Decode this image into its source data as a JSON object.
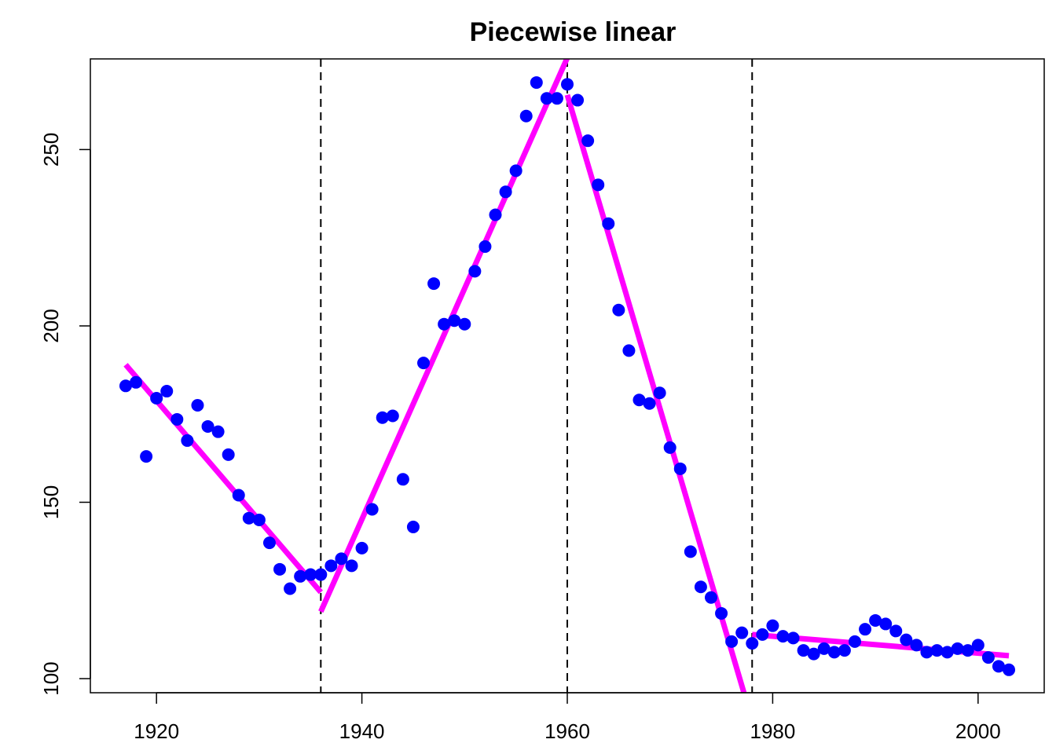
{
  "chart_data": {
    "type": "scatter",
    "title": "Piecewise linear",
    "xlabel": "",
    "ylabel": "",
    "xlim": [
      1913.56,
      2006.44
    ],
    "ylim": [
      96.0,
      275.7
    ],
    "x_ticks": [
      1920,
      1940,
      1960,
      1980,
      2000
    ],
    "y_ticks": [
      100,
      150,
      200,
      250
    ],
    "grid": false,
    "point_color": "#0000ff",
    "line_color": "#ff00ff",
    "breakpoints": [
      1936,
      1960,
      1978
    ],
    "points": [
      [
        1917,
        183
      ],
      [
        1918,
        184
      ],
      [
        1919,
        163
      ],
      [
        1920,
        179.5
      ],
      [
        1921,
        181.5
      ],
      [
        1922,
        173.5
      ],
      [
        1923,
        167.5
      ],
      [
        1924,
        177.5
      ],
      [
        1925,
        171.5
      ],
      [
        1926,
        170
      ],
      [
        1927,
        163.5
      ],
      [
        1928,
        152
      ],
      [
        1929,
        145.5
      ],
      [
        1930,
        145
      ],
      [
        1931,
        138.5
      ],
      [
        1932,
        131
      ],
      [
        1933,
        125.5
      ],
      [
        1934,
        129
      ],
      [
        1935,
        129.5
      ],
      [
        1936,
        129.5
      ],
      [
        1937,
        132
      ],
      [
        1938,
        134
      ],
      [
        1939,
        132
      ],
      [
        1940,
        137
      ],
      [
        1941,
        148
      ],
      [
        1942,
        174
      ],
      [
        1943,
        174.5
      ],
      [
        1944,
        156.5
      ],
      [
        1945,
        143
      ],
      [
        1946,
        189.5
      ],
      [
        1947,
        212
      ],
      [
        1948,
        200.5
      ],
      [
        1949,
        201.5
      ],
      [
        1950,
        200.5
      ],
      [
        1951,
        215.5
      ],
      [
        1952,
        222.5
      ],
      [
        1953,
        231.5
      ],
      [
        1954,
        238
      ],
      [
        1955,
        244
      ],
      [
        1956,
        259.5
      ],
      [
        1957,
        269
      ],
      [
        1958,
        264.5
      ],
      [
        1959,
        264.5
      ],
      [
        1960,
        268.5
      ],
      [
        1961,
        264
      ],
      [
        1962,
        252.5
      ],
      [
        1963,
        240
      ],
      [
        1964,
        229
      ],
      [
        1965,
        204.5
      ],
      [
        1966,
        193
      ],
      [
        1967,
        179
      ],
      [
        1968,
        178
      ],
      [
        1969,
        181
      ],
      [
        1970,
        165.5
      ],
      [
        1971,
        159.5
      ],
      [
        1972,
        136
      ],
      [
        1973,
        126
      ],
      [
        1974,
        123
      ],
      [
        1975,
        118.5
      ],
      [
        1976,
        110.5
      ],
      [
        1977,
        113
      ],
      [
        1978,
        110
      ],
      [
        1979,
        112.5
      ],
      [
        1980,
        115
      ],
      [
        1981,
        112
      ],
      [
        1982,
        111.5
      ],
      [
        1983,
        108
      ],
      [
        1984,
        107
      ],
      [
        1985,
        108.5
      ],
      [
        1986,
        107.5
      ],
      [
        1987,
        108
      ],
      [
        1988,
        110.5
      ],
      [
        1989,
        114
      ],
      [
        1990,
        116.5
      ],
      [
        1991,
        115.5
      ],
      [
        1992,
        113.5
      ],
      [
        1993,
        111
      ],
      [
        1994,
        109.5
      ],
      [
        1995,
        107.5
      ],
      [
        1996,
        108
      ],
      [
        1997,
        107.5
      ],
      [
        1998,
        108.5
      ],
      [
        1999,
        108
      ],
      [
        2000,
        109.5
      ],
      [
        2001,
        106
      ],
      [
        2002,
        103.5
      ],
      [
        2003,
        102.5
      ]
    ],
    "segments": [
      {
        "x": [
          1917,
          1936
        ],
        "y": [
          189,
          124.5
        ]
      },
      {
        "x": [
          1936,
          1960
        ],
        "y": [
          119,
          276
        ]
      },
      {
        "x": [
          1960,
          1977.2
        ],
        "y": [
          265.5,
          96
        ]
      },
      {
        "x": [
          1978,
          2003
        ],
        "y": [
          112.5,
          106.5
        ]
      }
    ]
  }
}
